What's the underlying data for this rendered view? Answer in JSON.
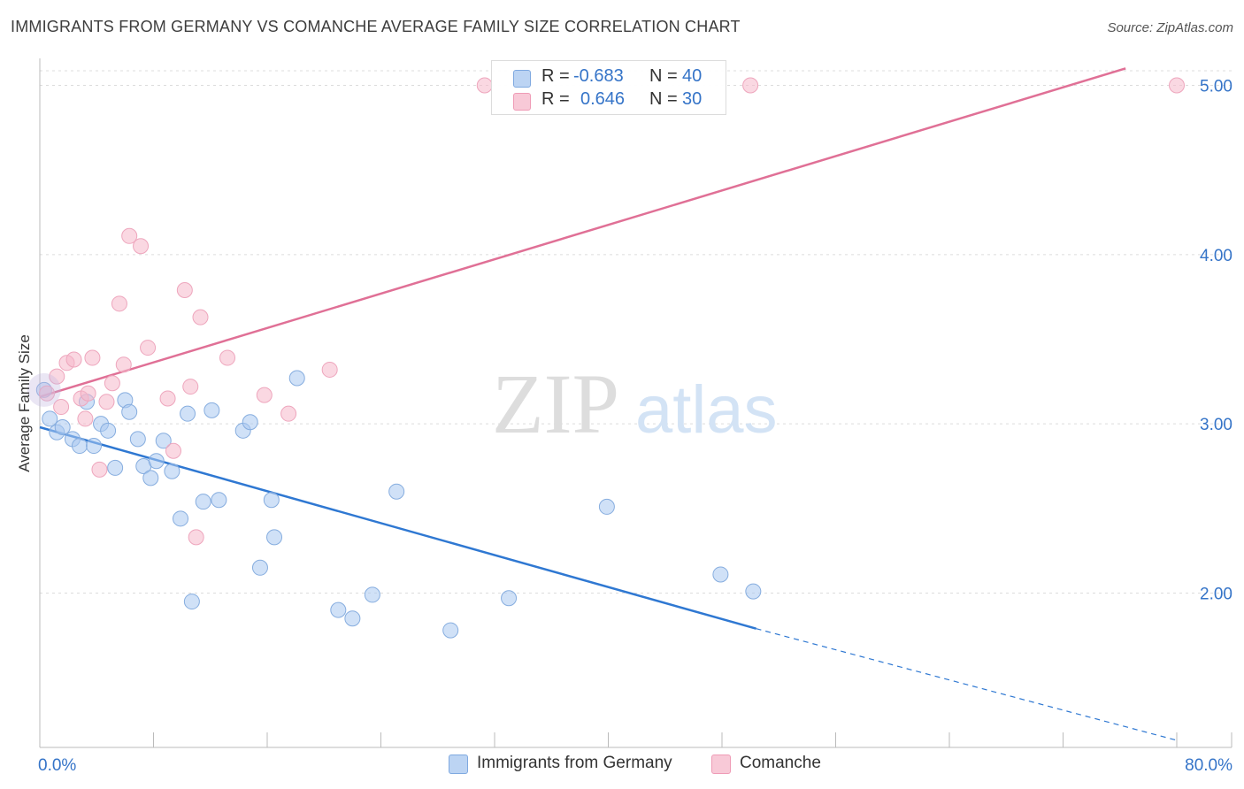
{
  "header": {
    "title": "IMMIGRANTS FROM GERMANY VS COMANCHE AVERAGE FAMILY SIZE CORRELATION CHART",
    "source": "Source: ZipAtlas.com"
  },
  "watermark": {
    "zip": "ZIP",
    "atlas": "atlas"
  },
  "stats_box": [
    {
      "r_label": "R =",
      "r_value": "-0.683",
      "n_label": "N =",
      "n_value": "40",
      "color": "#a9c8f0"
    },
    {
      "r_label": "R =",
      "r_value": "0.646",
      "n_label": "N =",
      "n_value": "30",
      "color": "#f5b8cb"
    }
  ],
  "chart_data": {
    "type": "scatter",
    "title": "IMMIGRANTS FROM GERMANY VS COMANCHE AVERAGE FAMILY SIZE CORRELATION CHART",
    "xlabel": "",
    "ylabel": "Average Family Size",
    "xlim": [
      0,
      80
    ],
    "ylim": [
      1.1,
      5.1
    ],
    "x_tick_labels": [
      "0.0%",
      "80.0%"
    ],
    "y_ticks": [
      2.0,
      3.0,
      4.0,
      5.0
    ],
    "y_tick_labels": [
      "2.00",
      "3.00",
      "4.00",
      "5.00"
    ],
    "grid": true,
    "legend_position": "bottom",
    "series": [
      {
        "name": "Immigrants from Germany",
        "color": "#a9c8f0",
        "line_color": "#2f78d2",
        "trend": {
          "x0": 0,
          "y0": 2.98,
          "x1": 50.4,
          "y1": 1.79,
          "dash_to_x": 80,
          "dash_to_y": 1.13
        },
        "points": [
          [
            0.3,
            3.2
          ],
          [
            0.7,
            3.03
          ],
          [
            1.2,
            2.95
          ],
          [
            1.6,
            2.98
          ],
          [
            2.3,
            2.91
          ],
          [
            2.8,
            2.87
          ],
          [
            3.3,
            3.13
          ],
          [
            3.8,
            2.87
          ],
          [
            4.3,
            3.0
          ],
          [
            4.8,
            2.96
          ],
          [
            5.3,
            2.74
          ],
          [
            6.0,
            3.14
          ],
          [
            6.3,
            3.07
          ],
          [
            6.9,
            2.91
          ],
          [
            7.3,
            2.75
          ],
          [
            7.8,
            2.68
          ],
          [
            8.2,
            2.78
          ],
          [
            8.7,
            2.9
          ],
          [
            9.3,
            2.72
          ],
          [
            9.9,
            2.44
          ],
          [
            10.4,
            3.06
          ],
          [
            10.7,
            1.95
          ],
          [
            11.5,
            2.54
          ],
          [
            12.1,
            3.08
          ],
          [
            12.6,
            2.55
          ],
          [
            14.3,
            2.96
          ],
          [
            14.8,
            3.01
          ],
          [
            15.5,
            2.15
          ],
          [
            16.3,
            2.55
          ],
          [
            16.5,
            2.33
          ],
          [
            18.1,
            3.27
          ],
          [
            21.0,
            1.9
          ],
          [
            22.0,
            1.85
          ],
          [
            23.4,
            1.99
          ],
          [
            25.1,
            2.6
          ],
          [
            28.9,
            1.78
          ],
          [
            33.0,
            1.97
          ],
          [
            39.9,
            2.51
          ],
          [
            47.9,
            2.11
          ],
          [
            50.2,
            2.01
          ]
        ]
      },
      {
        "name": "Comanche",
        "color": "#f5b8cb",
        "line_color": "#e07096",
        "trend": {
          "x0": 0,
          "y0": 3.16,
          "x1": 76.4,
          "y1": 5.1
        },
        "points": [
          [
            0.5,
            3.18
          ],
          [
            1.2,
            3.28
          ],
          [
            1.5,
            3.1
          ],
          [
            1.9,
            3.36
          ],
          [
            2.4,
            3.38
          ],
          [
            2.9,
            3.15
          ],
          [
            3.2,
            3.03
          ],
          [
            3.4,
            3.18
          ],
          [
            3.7,
            3.39
          ],
          [
            4.2,
            2.73
          ],
          [
            4.7,
            3.13
          ],
          [
            5.1,
            3.24
          ],
          [
            5.6,
            3.71
          ],
          [
            5.9,
            3.35
          ],
          [
            6.3,
            4.11
          ],
          [
            7.1,
            4.05
          ],
          [
            7.6,
            3.45
          ],
          [
            9.0,
            3.15
          ],
          [
            9.4,
            2.84
          ],
          [
            10.2,
            3.79
          ],
          [
            10.6,
            3.22
          ],
          [
            11.0,
            2.33
          ],
          [
            11.3,
            3.63
          ],
          [
            13.2,
            3.39
          ],
          [
            15.8,
            3.17
          ],
          [
            17.5,
            3.06
          ],
          [
            20.4,
            3.32
          ],
          [
            31.3,
            5.0
          ],
          [
            50.0,
            5.0
          ],
          [
            80.0,
            5.0
          ]
        ]
      }
    ]
  }
}
